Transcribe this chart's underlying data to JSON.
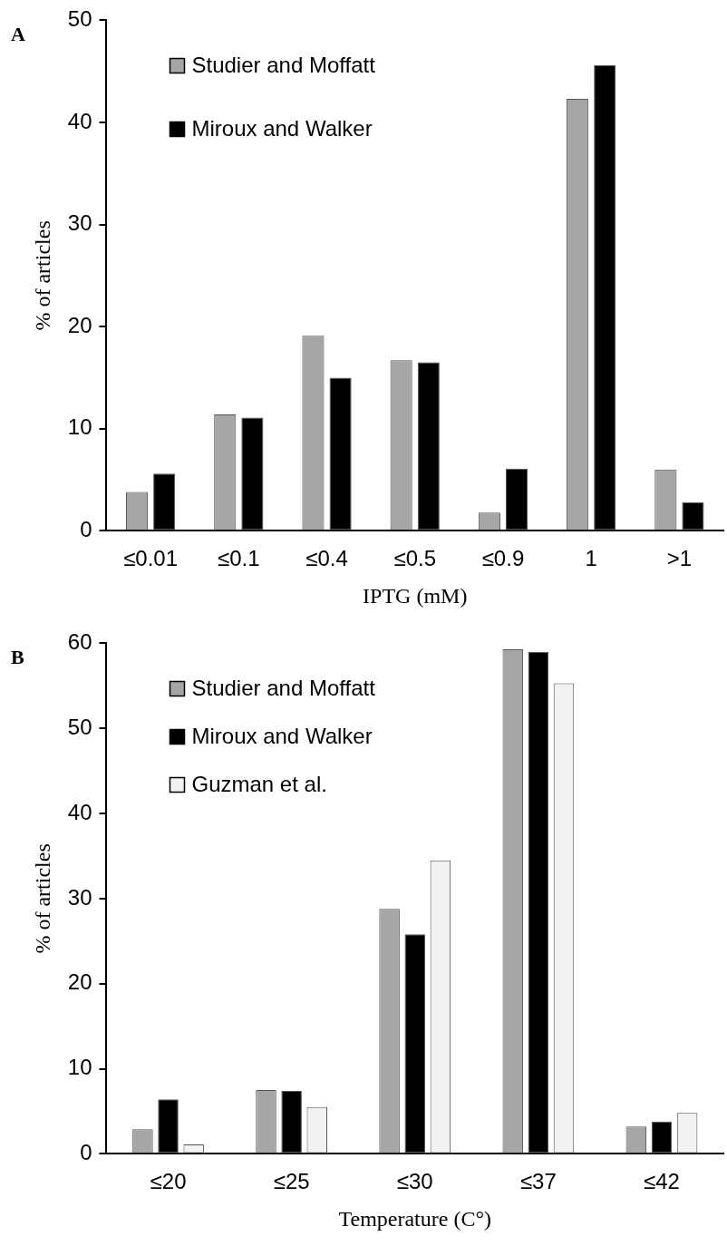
{
  "chart_data": [
    {
      "type": "bar",
      "title": "A",
      "xlabel": "IPTG (mM)",
      "ylabel": "% of articles",
      "categories": [
        "≤0.01",
        "≤0.1",
        "≤0.4",
        "≤0.5",
        "≤0.9",
        "1",
        ">1"
      ],
      "series": [
        {
          "name": "Studier and Moffatt",
          "color": "#a6a6a6",
          "values": [
            3.8,
            11.4,
            19.1,
            16.7,
            1.8,
            42.3,
            6.0
          ]
        },
        {
          "name": "Miroux and Walker",
          "color": "#000000",
          "values": [
            5.6,
            11.1,
            15.0,
            16.5,
            6.1,
            45.6,
            2.8
          ]
        }
      ],
      "ylim": [
        0,
        50
      ],
      "yticks": [
        0,
        10,
        20,
        30,
        40,
        50
      ],
      "grid": false,
      "legend": "top left"
    },
    {
      "type": "bar",
      "title": "B",
      "xlabel": "Temperature (C°)",
      "ylabel": "% of articles",
      "categories": [
        "≤20",
        "≤25",
        "≤30",
        "≤37",
        "≤42"
      ],
      "series": [
        {
          "name": "Studier and Moffatt",
          "color": "#a6a6a6",
          "values": [
            2.9,
            7.5,
            28.8,
            59.3,
            3.2
          ]
        },
        {
          "name": "Miroux and Walker",
          "color": "#000000",
          "values": [
            6.4,
            7.4,
            25.8,
            59.0,
            3.8
          ]
        },
        {
          "name": "Guzman et al.",
          "color": "#f2f2f2",
          "values": [
            1.1,
            5.5,
            34.5,
            55.3,
            4.8
          ]
        }
      ],
      "ylim": [
        0,
        60
      ],
      "yticks": [
        0,
        10,
        20,
        30,
        40,
        50,
        60
      ],
      "grid": false,
      "legend": "top left"
    }
  ]
}
